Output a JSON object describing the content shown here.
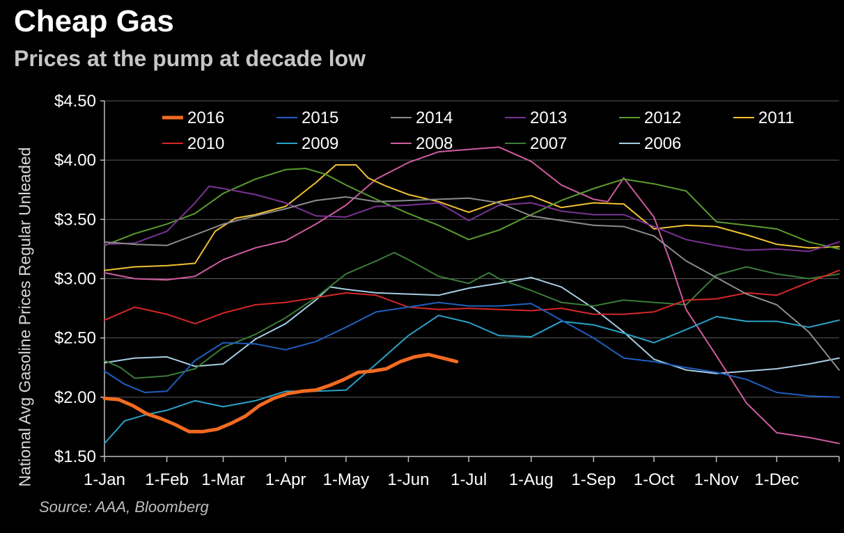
{
  "title": "Cheap Gas",
  "subtitle": "Prices at the pump at decade low",
  "source": "Source: AAA, Bloomberg",
  "chart_data": {
    "type": "line",
    "ylabel": "National Avg Gasoline Prices Regular Unleaded",
    "xlabel": "",
    "ylim": [
      1.5,
      4.5
    ],
    "yticks": [
      1.5,
      2.0,
      2.5,
      3.0,
      3.5,
      4.0,
      4.5
    ],
    "ytick_labels": [
      "$1.50",
      "$2.00",
      "$2.50",
      "$3.00",
      "$3.50",
      "$4.00",
      "$4.50"
    ],
    "xlim": [
      0,
      365
    ],
    "xticks": [
      0,
      31,
      59,
      90,
      120,
      151,
      181,
      212,
      243,
      273,
      304,
      334,
      365
    ],
    "xtick_labels": [
      "1-Jan",
      "1-Feb",
      "1-Mar",
      "1-Apr",
      "1-May",
      "1-Jun",
      "1-Jul",
      "1-Aug",
      "1-Sep",
      "1-Oct",
      "1-Nov",
      "1-Dec",
      ""
    ],
    "grid": "horizontal",
    "legend_position": "top",
    "series": [
      {
        "name": "2016",
        "color": "#f26b21",
        "width": 5,
        "x": [
          0,
          7,
          14,
          21,
          28,
          35,
          42,
          49,
          56,
          63,
          70,
          77,
          84,
          91,
          98,
          105,
          112,
          119,
          126,
          133,
          140,
          147,
          154,
          161,
          168,
          175
        ],
        "values": [
          1.99,
          1.98,
          1.93,
          1.86,
          1.82,
          1.77,
          1.71,
          1.71,
          1.73,
          1.78,
          1.84,
          1.93,
          1.99,
          2.03,
          2.05,
          2.06,
          2.1,
          2.15,
          2.21,
          2.22,
          2.24,
          2.3,
          2.34,
          2.36,
          2.33,
          2.3
        ]
      },
      {
        "name": "2015",
        "color": "#1f5fbf",
        "width": 2,
        "x": [
          0,
          10,
          20,
          31,
          45,
          59,
          75,
          90,
          105,
          120,
          135,
          151,
          166,
          181,
          196,
          212,
          227,
          243,
          258,
          273,
          289,
          304,
          319,
          334,
          350,
          365
        ],
        "values": [
          2.22,
          2.11,
          2.04,
          2.05,
          2.31,
          2.46,
          2.45,
          2.4,
          2.47,
          2.59,
          2.72,
          2.76,
          2.8,
          2.77,
          2.77,
          2.79,
          2.65,
          2.5,
          2.33,
          2.3,
          2.25,
          2.21,
          2.15,
          2.04,
          2.01,
          2.0
        ]
      },
      {
        "name": "2014",
        "color": "#8c8c8c",
        "width": 2,
        "x": [
          0,
          15,
          31,
          45,
          59,
          75,
          90,
          105,
          120,
          135,
          151,
          166,
          181,
          196,
          212,
          227,
          243,
          258,
          273,
          289,
          304,
          319,
          334,
          350,
          365
        ],
        "values": [
          3.31,
          3.29,
          3.28,
          3.37,
          3.46,
          3.53,
          3.59,
          3.66,
          3.69,
          3.65,
          3.66,
          3.67,
          3.68,
          3.64,
          3.53,
          3.49,
          3.45,
          3.44,
          3.36,
          3.15,
          3.01,
          2.87,
          2.78,
          2.55,
          2.23
        ]
      },
      {
        "name": "2013",
        "color": "#7b3294",
        "width": 2,
        "x": [
          0,
          15,
          31,
          45,
          52,
          59,
          75,
          90,
          105,
          120,
          135,
          151,
          166,
          181,
          196,
          212,
          227,
          243,
          258,
          273,
          289,
          304,
          319,
          334,
          350,
          365
        ],
        "values": [
          3.29,
          3.3,
          3.4,
          3.64,
          3.78,
          3.76,
          3.71,
          3.64,
          3.53,
          3.52,
          3.61,
          3.62,
          3.64,
          3.49,
          3.62,
          3.64,
          3.57,
          3.54,
          3.54,
          3.44,
          3.33,
          3.28,
          3.24,
          3.25,
          3.23,
          3.31
        ]
      },
      {
        "name": "2012",
        "color": "#5a9c2e",
        "width": 2,
        "x": [
          0,
          15,
          31,
          45,
          59,
          75,
          90,
          100,
          110,
          120,
          135,
          151,
          166,
          181,
          196,
          212,
          227,
          243,
          258,
          273,
          289,
          304,
          319,
          334,
          350,
          365
        ],
        "values": [
          3.28,
          3.38,
          3.46,
          3.55,
          3.72,
          3.84,
          3.92,
          3.93,
          3.88,
          3.79,
          3.67,
          3.55,
          3.45,
          3.33,
          3.41,
          3.54,
          3.66,
          3.76,
          3.84,
          3.8,
          3.74,
          3.48,
          3.45,
          3.42,
          3.31,
          3.25
        ]
      },
      {
        "name": "2011",
        "color": "#f2c232",
        "width": 2,
        "x": [
          0,
          15,
          31,
          45,
          55,
          65,
          75,
          90,
          105,
          115,
          125,
          131,
          140,
          151,
          166,
          181,
          196,
          212,
          227,
          243,
          258,
          273,
          289,
          304,
          319,
          334,
          350,
          365
        ],
        "values": [
          3.07,
          3.1,
          3.11,
          3.13,
          3.4,
          3.51,
          3.54,
          3.61,
          3.81,
          3.96,
          3.96,
          3.85,
          3.78,
          3.71,
          3.65,
          3.56,
          3.65,
          3.7,
          3.6,
          3.64,
          3.63,
          3.42,
          3.45,
          3.44,
          3.37,
          3.29,
          3.26,
          3.27
        ]
      },
      {
        "name": "2010",
        "color": "#d62728",
        "width": 2,
        "x": [
          0,
          15,
          31,
          45,
          59,
          75,
          90,
          105,
          120,
          135,
          151,
          166,
          181,
          196,
          212,
          227,
          243,
          258,
          273,
          289,
          304,
          319,
          334,
          350,
          365
        ],
        "values": [
          2.65,
          2.76,
          2.7,
          2.62,
          2.71,
          2.78,
          2.8,
          2.84,
          2.88,
          2.86,
          2.76,
          2.74,
          2.75,
          2.74,
          2.73,
          2.75,
          2.7,
          2.7,
          2.72,
          2.82,
          2.83,
          2.88,
          2.86,
          2.97,
          3.07
        ]
      },
      {
        "name": "2009",
        "color": "#2aa3c9",
        "width": 2,
        "x": [
          0,
          10,
          20,
          31,
          45,
          59,
          75,
          90,
          105,
          120,
          135,
          151,
          166,
          181,
          196,
          212,
          227,
          243,
          258,
          273,
          289,
          304,
          319,
          334,
          350,
          365
        ],
        "values": [
          1.61,
          1.8,
          1.85,
          1.89,
          1.97,
          1.92,
          1.97,
          2.05,
          2.05,
          2.06,
          2.28,
          2.52,
          2.69,
          2.63,
          2.52,
          2.51,
          2.64,
          2.61,
          2.54,
          2.46,
          2.57,
          2.68,
          2.64,
          2.64,
          2.59,
          2.65
        ]
      },
      {
        "name": "2008",
        "color": "#d05ca0",
        "width": 2,
        "x": [
          0,
          15,
          31,
          45,
          59,
          75,
          90,
          105,
          120,
          135,
          151,
          166,
          181,
          196,
          212,
          227,
          243,
          250,
          258,
          273,
          281,
          289,
          304,
          319,
          334,
          350,
          365
        ],
        "values": [
          3.05,
          3.0,
          2.99,
          3.02,
          3.16,
          3.26,
          3.32,
          3.46,
          3.62,
          3.84,
          3.98,
          4.07,
          4.09,
          4.11,
          3.99,
          3.79,
          3.67,
          3.65,
          3.85,
          3.52,
          3.15,
          2.74,
          2.35,
          1.95,
          1.7,
          1.66,
          1.61
        ]
      },
      {
        "name": "2007",
        "color": "#3a7d3a",
        "width": 2,
        "x": [
          0,
          8,
          15,
          31,
          45,
          59,
          75,
          90,
          105,
          120,
          135,
          144,
          151,
          166,
          181,
          191,
          196,
          212,
          227,
          243,
          258,
          273,
          289,
          304,
          319,
          334,
          350,
          365
        ],
        "values": [
          2.31,
          2.25,
          2.16,
          2.18,
          2.24,
          2.42,
          2.53,
          2.67,
          2.84,
          3.04,
          3.15,
          3.22,
          3.16,
          3.02,
          2.96,
          3.05,
          3.0,
          2.9,
          2.8,
          2.77,
          2.82,
          2.8,
          2.78,
          3.03,
          3.1,
          3.04,
          3.0,
          3.04
        ]
      },
      {
        "name": "2006",
        "color": "#a6cee3",
        "width": 2,
        "x": [
          0,
          15,
          31,
          45,
          59,
          75,
          90,
          105,
          112,
          120,
          135,
          151,
          166,
          181,
          196,
          212,
          227,
          243,
          258,
          273,
          289,
          304,
          319,
          334,
          350,
          365
        ],
        "values": [
          2.29,
          2.33,
          2.34,
          2.26,
          2.28,
          2.49,
          2.62,
          2.82,
          2.93,
          2.91,
          2.88,
          2.87,
          2.86,
          2.92,
          2.96,
          3.01,
          2.93,
          2.75,
          2.55,
          2.32,
          2.23,
          2.2,
          2.22,
          2.24,
          2.28,
          2.33
        ]
      }
    ]
  }
}
